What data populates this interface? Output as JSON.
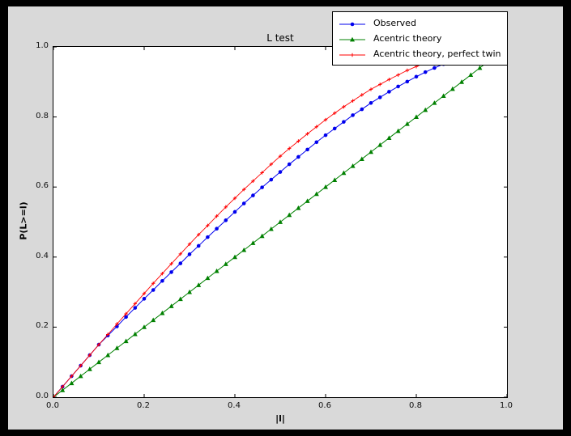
{
  "colors": {
    "window_bg": "#000000",
    "figure_bg": "#d9d9d9",
    "plot_bg": "#ffffff",
    "frame": "#000000",
    "observed": "#0000ee",
    "acentric_theory": "#008000",
    "perfect_twin": "#ff0000"
  },
  "chart_data": {
    "type": "line",
    "title": "L test",
    "xlabel": "|l|",
    "ylabel": "P(L>=l)",
    "xlim": [
      0.0,
      1.0
    ],
    "ylim": [
      0.0,
      1.0
    ],
    "grid": false,
    "x_ticks": [
      "0.0",
      "0.2",
      "0.4",
      "0.6",
      "0.8",
      "1.0"
    ],
    "y_ticks": [
      "0.0",
      "0.2",
      "0.4",
      "0.6",
      "0.8",
      "1.0"
    ],
    "legend_position": "upper right",
    "series": [
      {
        "name": "Observed",
        "color": "#0000ee",
        "marker": "circle",
        "line_width": 1,
        "x": [
          0,
          0.02,
          0.04,
          0.06,
          0.08,
          0.1,
          0.12,
          0.14,
          0.16,
          0.18,
          0.2,
          0.22,
          0.24,
          0.26,
          0.28,
          0.3,
          0.32,
          0.34,
          0.36,
          0.38,
          0.4,
          0.42,
          0.44,
          0.46,
          0.48,
          0.5,
          0.52,
          0.54,
          0.56,
          0.58,
          0.6,
          0.62,
          0.64,
          0.66,
          0.68,
          0.7,
          0.72,
          0.74,
          0.76,
          0.78,
          0.8,
          0.82,
          0.84,
          0.86
        ],
        "y": [
          0,
          0.03,
          0.06,
          0.09,
          0.12,
          0.15,
          0.176,
          0.202,
          0.229,
          0.255,
          0.281,
          0.306,
          0.332,
          0.357,
          0.382,
          0.408,
          0.432,
          0.457,
          0.481,
          0.505,
          0.529,
          0.553,
          0.576,
          0.599,
          0.621,
          0.643,
          0.665,
          0.686,
          0.707,
          0.728,
          0.748,
          0.767,
          0.786,
          0.805,
          0.822,
          0.84,
          0.856,
          0.872,
          0.887,
          0.901,
          0.915,
          0.928,
          0.94,
          0.951
        ]
      },
      {
        "name": "Acentric theory",
        "color": "#008000",
        "marker": "triangle_up",
        "line_width": 1,
        "x": [
          0,
          0.02,
          0.04,
          0.06,
          0.08,
          0.1,
          0.12,
          0.14,
          0.16,
          0.18,
          0.2,
          0.22,
          0.24,
          0.26,
          0.28,
          0.3,
          0.32,
          0.34,
          0.36,
          0.38,
          0.4,
          0.42,
          0.44,
          0.46,
          0.48,
          0.5,
          0.52,
          0.54,
          0.56,
          0.58,
          0.6,
          0.62,
          0.64,
          0.66,
          0.68,
          0.7,
          0.72,
          0.74,
          0.76,
          0.78,
          0.8,
          0.82,
          0.84,
          0.86,
          0.88,
          0.9,
          0.92,
          0.94,
          0.96
        ],
        "y": [
          0,
          0.02,
          0.04,
          0.06,
          0.08,
          0.1,
          0.12,
          0.14,
          0.16,
          0.18,
          0.2,
          0.22,
          0.24,
          0.26,
          0.28,
          0.3,
          0.32,
          0.34,
          0.36,
          0.38,
          0.4,
          0.42,
          0.44,
          0.46,
          0.48,
          0.5,
          0.52,
          0.54,
          0.56,
          0.58,
          0.6,
          0.62,
          0.64,
          0.66,
          0.68,
          0.7,
          0.72,
          0.74,
          0.76,
          0.78,
          0.8,
          0.82,
          0.84,
          0.86,
          0.88,
          0.9,
          0.92,
          0.94,
          0.96
        ]
      },
      {
        "name": "Acentric theory, perfect twin",
        "color": "#ff0000",
        "marker": "plus",
        "line_width": 0.9,
        "x": [
          0,
          0.02,
          0.04,
          0.06,
          0.08,
          0.1,
          0.12,
          0.14,
          0.16,
          0.18,
          0.2,
          0.22,
          0.24,
          0.26,
          0.28,
          0.3,
          0.32,
          0.34,
          0.36,
          0.38,
          0.4,
          0.42,
          0.44,
          0.46,
          0.48,
          0.5,
          0.52,
          0.54,
          0.56,
          0.58,
          0.6,
          0.62,
          0.64,
          0.66,
          0.68,
          0.7,
          0.72,
          0.74,
          0.76,
          0.78,
          0.8,
          0.82,
          0.84,
          0.86,
          0.88,
          0.9,
          0.92,
          0.94,
          0.96
        ],
        "y": [
          0,
          0.03,
          0.06,
          0.09,
          0.12,
          0.15,
          0.179,
          0.209,
          0.238,
          0.267,
          0.296,
          0.325,
          0.353,
          0.381,
          0.409,
          0.437,
          0.464,
          0.49,
          0.517,
          0.543,
          0.568,
          0.593,
          0.617,
          0.641,
          0.665,
          0.688,
          0.71,
          0.731,
          0.752,
          0.772,
          0.792,
          0.811,
          0.829,
          0.846,
          0.863,
          0.879,
          0.893,
          0.907,
          0.92,
          0.933,
          0.944,
          0.954,
          0.964,
          0.972,
          0.979,
          0.986,
          0.991,
          0.995,
          0.998
        ]
      }
    ]
  }
}
